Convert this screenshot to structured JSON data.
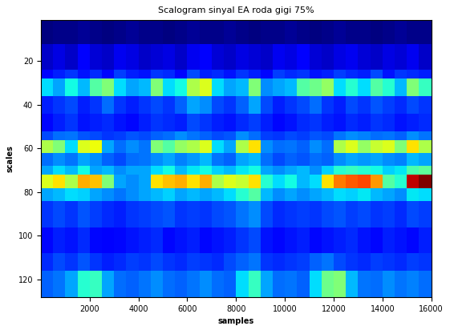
{
  "chart_data": {
    "type": "heatmap",
    "title": "Scalogram sinyal EA roda gigi 75%",
    "x_label": "samples",
    "y_label": "scales",
    "xlim": [
      1,
      16000
    ],
    "xticks": [
      2000,
      4000,
      6000,
      8000,
      10000,
      12000,
      14000,
      16000
    ],
    "ylim": [
      128,
      1
    ],
    "yticks": [
      20,
      40,
      60,
      80,
      100,
      120
    ],
    "x_edges": [
      0,
      500,
      1000,
      1500,
      2000,
      2500,
      3000,
      3500,
      4000,
      4500,
      5000,
      5500,
      6000,
      6500,
      7000,
      7500,
      8000,
      8500,
      9000,
      9500,
      10000,
      10500,
      11000,
      11500,
      12000,
      12500,
      13000,
      13500,
      14000,
      14500,
      15000,
      15500,
      16000
    ],
    "y_edges": [
      0,
      12,
      24,
      28,
      36,
      44,
      52,
      56,
      62,
      68,
      72,
      78,
      84,
      96,
      108,
      116,
      128
    ],
    "cells": [
      [
        0.4,
        0.5,
        0.5,
        0.6,
        0.5,
        0.4,
        0.5,
        0.6,
        0.5,
        0.5,
        0.4,
        0.5,
        0.6,
        0.5,
        0.5,
        0.6,
        0.5,
        0.4,
        0.5,
        0.5,
        0.6,
        0.5,
        0.4,
        0.5,
        0.6,
        0.5,
        0.5,
        0.4,
        0.5,
        0.6,
        0.5,
        0.5
      ],
      [
        1.0,
        1.2,
        1.0,
        1.4,
        1.1,
        1.0,
        1.3,
        1.2,
        1.0,
        1.1,
        1.2,
        1.0,
        1.3,
        1.4,
        1.1,
        1.0,
        1.2,
        1.1,
        1.0,
        1.3,
        1.2,
        1.4,
        1.1,
        1.0,
        1.2,
        1.3,
        1.1,
        1.0,
        1.2,
        1.1,
        1.3,
        1.0
      ],
      [
        1.6,
        1.8,
        2.0,
        1.7,
        1.9,
        1.6,
        2.1,
        1.8,
        1.7,
        2.0,
        1.9,
        1.6,
        2.2,
        1.8,
        1.9,
        1.7,
        2.0,
        1.8,
        1.6,
        2.1,
        1.9,
        2.0,
        1.7,
        1.8,
        2.1,
        1.9,
        1.8,
        2.2,
        1.7,
        2.0,
        1.9,
        1.8
      ],
      [
        3.5,
        3.0,
        3.8,
        3.2,
        4.5,
        5.0,
        3.5,
        3.0,
        3.2,
        5.0,
        3.5,
        3.8,
        5.5,
        6.0,
        3.5,
        3.0,
        3.2,
        5.0,
        2.8,
        3.0,
        3.2,
        4.5,
        4.8,
        5.2,
        3.5,
        4.0,
        3.5,
        4.5,
        4.0,
        3.2,
        5.0,
        4.2
      ],
      [
        1.8,
        2.0,
        2.2,
        1.8,
        2.0,
        2.5,
        2.0,
        1.8,
        2.0,
        2.2,
        2.0,
        2.4,
        3.0,
        2.8,
        2.2,
        2.0,
        2.4,
        3.0,
        2.2,
        1.8,
        2.0,
        2.2,
        2.5,
        2.0,
        1.8,
        2.2,
        2.0,
        2.3,
        2.1,
        1.9,
        2.2,
        2.0
      ],
      [
        1.6,
        1.8,
        2.0,
        1.7,
        1.8,
        1.9,
        1.7,
        1.6,
        1.8,
        2.0,
        1.9,
        1.8,
        2.2,
        2.0,
        1.8,
        1.7,
        1.9,
        2.1,
        1.8,
        1.6,
        1.7,
        1.9,
        2.0,
        1.8,
        1.7,
        1.9,
        1.8,
        2.0,
        1.9,
        1.7,
        1.8,
        1.9
      ],
      [
        2.2,
        2.5,
        2.6,
        2.3,
        2.2,
        2.0,
        2.1,
        2.3,
        2.2,
        2.4,
        2.5,
        2.8,
        2.6,
        2.4,
        2.2,
        2.3,
        2.8,
        2.5,
        2.1,
        2.0,
        2.2,
        2.1,
        2.3,
        2.2,
        2.6,
        2.8,
        2.7,
        2.5,
        2.6,
        2.4,
        2.8,
        2.6
      ],
      [
        5.5,
        5.0,
        3.5,
        6.0,
        6.2,
        3.0,
        2.5,
        2.8,
        2.6,
        5.0,
        4.5,
        5.2,
        5.5,
        6.0,
        3.5,
        3.0,
        5.5,
        6.5,
        2.8,
        2.5,
        2.6,
        2.4,
        2.8,
        2.5,
        5.5,
        6.0,
        5.2,
        5.8,
        6.0,
        5.0,
        6.5,
        5.5
      ],
      [
        2.5,
        2.8,
        2.6,
        3.0,
        2.8,
        2.4,
        2.2,
        2.5,
        2.6,
        2.8,
        3.0,
        2.7,
        2.9,
        3.2,
        2.6,
        2.4,
        3.0,
        3.2,
        2.5,
        2.2,
        2.4,
        2.3,
        2.5,
        2.4,
        2.8,
        3.0,
        2.9,
        3.0,
        2.8,
        2.7,
        3.2,
        3.0
      ],
      [
        3.0,
        3.5,
        3.2,
        3.8,
        3.0,
        3.2,
        2.8,
        3.0,
        3.0,
        3.5,
        3.8,
        3.2,
        3.6,
        3.8,
        3.4,
        3.2,
        3.6,
        3.8,
        3.0,
        2.8,
        3.0,
        3.2,
        2.8,
        3.4,
        4.0,
        4.2,
        4.0,
        3.8,
        3.4,
        3.6,
        4.4,
        4.6
      ],
      [
        6.0,
        6.5,
        5.5,
        7.0,
        6.8,
        5.0,
        3.0,
        2.8,
        3.0,
        6.5,
        6.8,
        7.0,
        6.5,
        7.0,
        5.5,
        6.0,
        5.8,
        6.5,
        4.0,
        3.5,
        3.8,
        3.2,
        3.5,
        6.5,
        7.5,
        7.8,
        8.0,
        7.2,
        4.5,
        4.0,
        9.0,
        9.5
      ],
      [
        3.0,
        3.2,
        3.5,
        3.4,
        3.0,
        2.8,
        2.6,
        2.8,
        3.0,
        3.2,
        3.4,
        3.0,
        3.2,
        3.0,
        3.2,
        3.5,
        4.0,
        4.5,
        3.2,
        2.8,
        3.0,
        2.8,
        3.0,
        3.2,
        3.5,
        3.4,
        3.6,
        3.2,
        3.0,
        2.8,
        3.6,
        3.5
      ],
      [
        2.0,
        2.2,
        2.0,
        2.3,
        2.1,
        1.9,
        1.8,
        2.0,
        2.1,
        2.2,
        2.3,
        2.0,
        2.1,
        2.0,
        2.2,
        2.3,
        2.6,
        2.8,
        2.2,
        1.9,
        2.0,
        2.1,
        2.0,
        2.2,
        2.3,
        2.1,
        2.2,
        2.0,
        2.1,
        1.9,
        2.2,
        2.1
      ],
      [
        1.6,
        1.8,
        1.7,
        1.9,
        1.6,
        1.5,
        1.6,
        1.7,
        1.8,
        1.9,
        1.6,
        1.7,
        1.8,
        1.6,
        1.7,
        1.8,
        2.0,
        2.2,
        1.7,
        1.6,
        1.7,
        1.8,
        1.6,
        1.7,
        1.8,
        1.9,
        1.7,
        1.6,
        1.8,
        1.7,
        1.6,
        1.8
      ],
      [
        1.9,
        2.2,
        2.0,
        2.3,
        2.0,
        1.8,
        1.9,
        2.1,
        2.0,
        2.2,
        2.0,
        1.9,
        2.1,
        2.0,
        1.9,
        2.2,
        2.4,
        2.6,
        2.0,
        1.9,
        2.0,
        2.1,
        2.4,
        2.6,
        2.2,
        2.0,
        1.9,
        2.1,
        2.0,
        1.9,
        2.1,
        2.0
      ],
      [
        2.4,
        2.6,
        3.0,
        4.0,
        4.2,
        3.0,
        2.5,
        2.4,
        2.6,
        2.8,
        2.5,
        2.4,
        2.6,
        2.8,
        2.5,
        2.4,
        3.5,
        4.2,
        3.0,
        2.5,
        2.6,
        2.4,
        3.5,
        4.8,
        5.0,
        3.2,
        2.6,
        2.5,
        2.8,
        2.6,
        2.7,
        2.5
      ]
    ]
  }
}
